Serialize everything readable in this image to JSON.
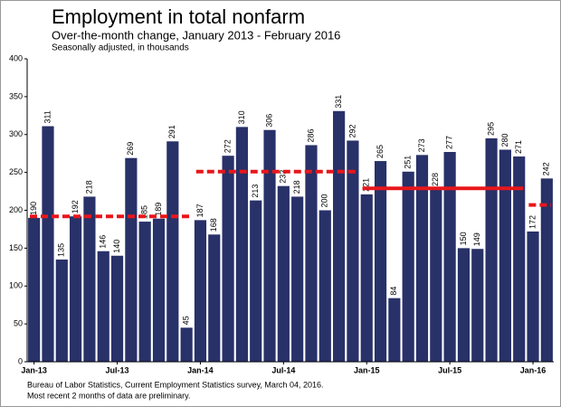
{
  "chart_data": {
    "type": "bar",
    "title": "Employment in total nonfarm",
    "subtitle": "Over-the-month change, January 2013 - February 2016",
    "unit_note": "Seasonally adjusted, in thousands",
    "footnotes": [
      "Bureau of Labor Statistics, Current Employment Statistics survey, March 04, 2016.",
      "Most recent 2 months of data are preliminary."
    ],
    "categories": [
      "Jan-13",
      null,
      null,
      null,
      null,
      null,
      "Jul-13",
      null,
      null,
      null,
      null,
      null,
      "Jan-14",
      null,
      null,
      null,
      null,
      null,
      "Jul-14",
      null,
      null,
      null,
      null,
      null,
      "Jan-15",
      null,
      null,
      null,
      null,
      null,
      "Jul-15",
      null,
      null,
      null,
      null,
      null,
      "Jan-16",
      null
    ],
    "values": [
      190,
      311,
      135,
      192,
      218,
      146,
      140,
      269,
      185,
      189,
      291,
      45,
      187,
      168,
      272,
      310,
      213,
      306,
      232,
      218,
      286,
      200,
      331,
      292,
      221,
      265,
      84,
      251,
      273,
      228,
      277,
      150,
      149,
      295,
      280,
      271,
      172,
      242
    ],
    "color": "#283168",
    "annual_averages": {
      "values": [
        192,
        251,
        229,
        207
      ],
      "dashed": [
        true,
        true,
        false,
        true
      ],
      "color": "#e8161b"
    },
    "ylim": [
      0,
      400
    ],
    "yticks": [
      0,
      50,
      100,
      150,
      200,
      250,
      300,
      350,
      400
    ],
    "grid": false
  }
}
